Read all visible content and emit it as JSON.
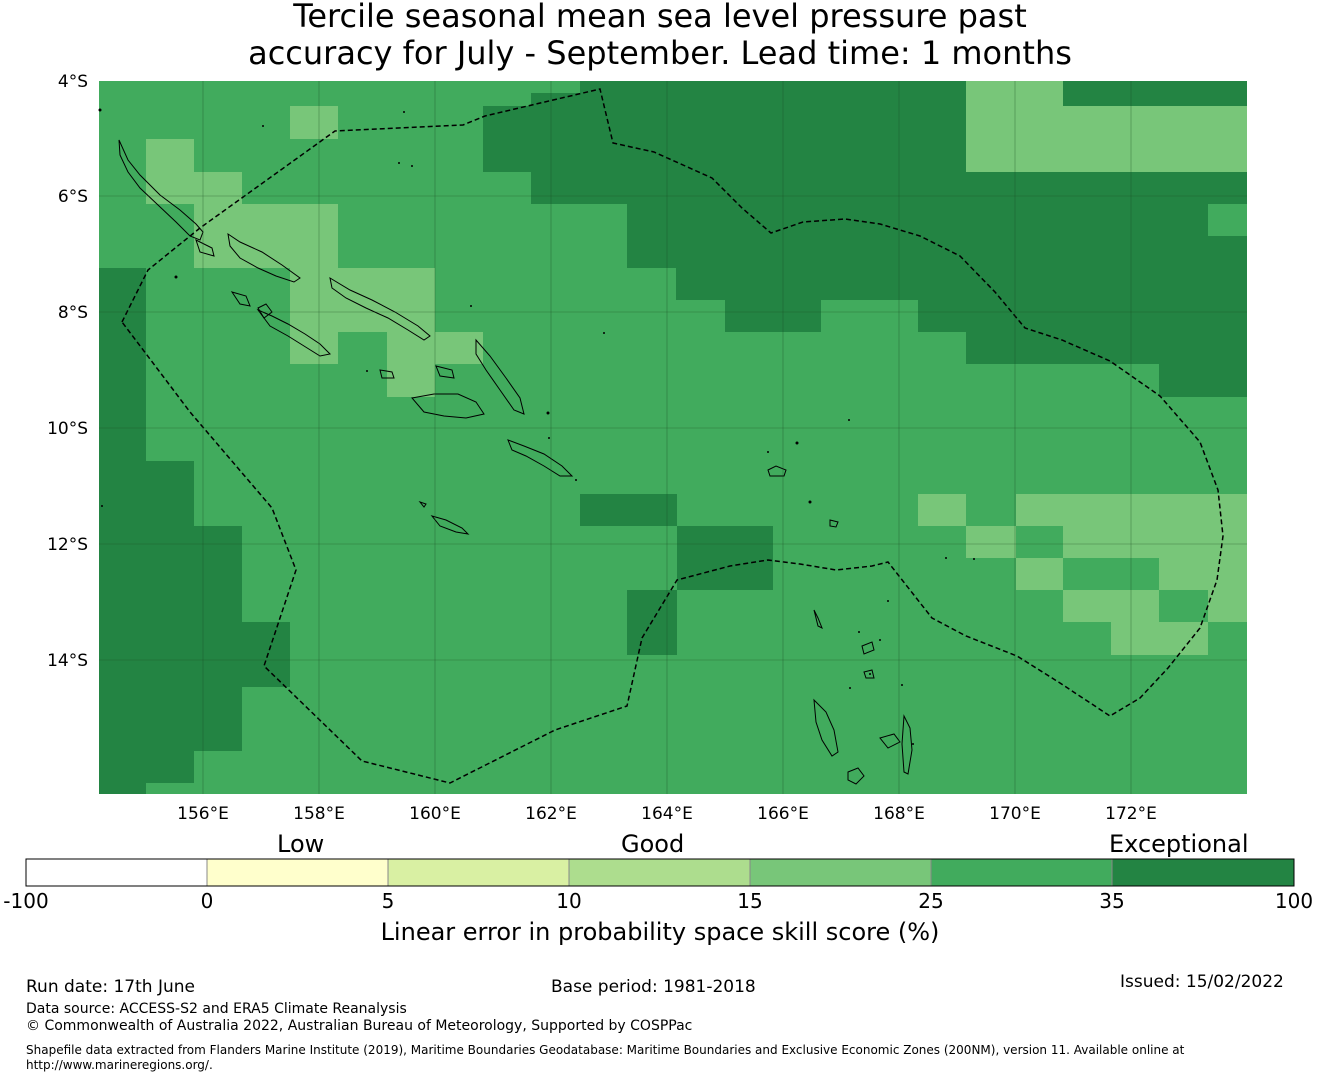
{
  "title": {
    "line1": "Tercile seasonal mean sea level pressure past",
    "line2": "accuracy for July - September. Lead time: 1 months"
  },
  "map": {
    "lat_labels": [
      "4°S",
      "6°S",
      "8°S",
      "10°S",
      "12°S",
      "14°S"
    ],
    "lon_labels": [
      "156°E",
      "158°E",
      "160°E",
      "162°E",
      "164°E",
      "166°E",
      "168°E",
      "170°E",
      "172°E"
    ],
    "extent": {
      "lon": [
        154.2,
        174.0
      ],
      "lat": [
        -4.0,
        -16.3
      ]
    },
    "colors": {
      "c15_25": "#78c679",
      "c25_35": "#41ab5d",
      "c35_100": "#238443",
      "grid": "#1a4a22",
      "coast": "#000000",
      "eez": "#000000"
    }
  },
  "colorbar": {
    "category_labels": {
      "low": "Low",
      "good": "Good",
      "exceptional": "Exceptional"
    },
    "ticks": [
      "-100",
      "0",
      "5",
      "10",
      "15",
      "25",
      "35",
      "100"
    ],
    "colors": [
      "#ffffff",
      "#ffffcc",
      "#d9f0a3",
      "#addd8e",
      "#78c679",
      "#41ab5d",
      "#238443"
    ],
    "label": "Linear error in probability space skill score (%)"
  },
  "footer": {
    "run_date": "Run date: 17th June",
    "base_period": "Base period: 1981-2018",
    "issued": "Issued: 15/02/2022",
    "data_source": "Data source: ACCESS-S2 and ERA5 Climate Reanalysis",
    "copyright": "© Commonwealth of Australia 2022, Australian Bureau of Meteorology, Supported by COSPPac",
    "shapefile": "Shapefile data extracted from Flanders Marine Institute (2019), Maritime Boundaries Geodatabase: Maritime Boundaries and Exclusive Economic Zones (200NM), version 11. Available online at http://www.marineregions.org/."
  }
}
